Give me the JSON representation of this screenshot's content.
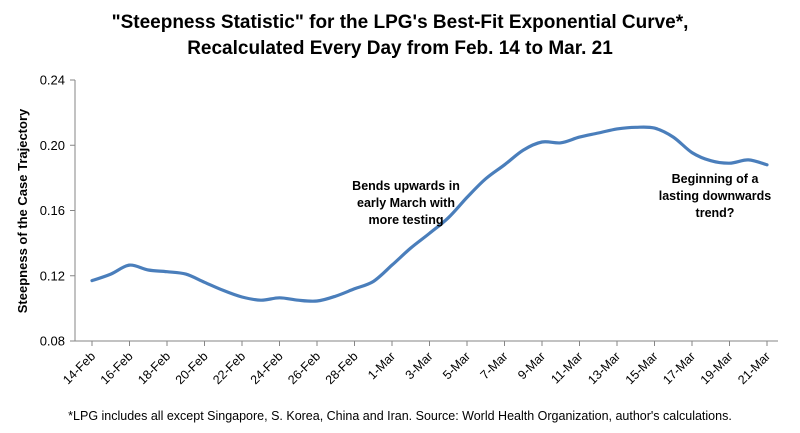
{
  "chart_data": {
    "type": "line",
    "title": [
      "\"Steepness Statistic\" for the LPG's Best-Fit Exponential Curve*,",
      "Recalculated Every Day from Feb. 14 to Mar. 21"
    ],
    "xlabel": "",
    "ylabel": "Steepness of the Case Trajectory",
    "ylim": [
      0.08,
      0.24
    ],
    "yticks": [
      "0.08",
      "0.12",
      "0.16",
      "0.20",
      "0.24"
    ],
    "grid": false,
    "x_tick_labels": [
      "14-Feb",
      "16-Feb",
      "18-Feb",
      "20-Feb",
      "22-Feb",
      "24-Feb",
      "26-Feb",
      "28-Feb",
      "1-Mar",
      "3-Mar",
      "5-Mar",
      "7-Mar",
      "9-Mar",
      "11-Mar",
      "13-Mar",
      "15-Mar",
      "17-Mar",
      "19-Mar",
      "21-Mar"
    ],
    "series": [
      {
        "color": "#4a7ebb",
        "x": [
          "14-Feb",
          "15-Feb",
          "16-Feb",
          "17-Feb",
          "18-Feb",
          "19-Feb",
          "20-Feb",
          "21-Feb",
          "22-Feb",
          "23-Feb",
          "24-Feb",
          "25-Feb",
          "26-Feb",
          "27-Feb",
          "28-Feb",
          "29-Feb",
          "1-Mar",
          "2-Mar",
          "3-Mar",
          "4-Mar",
          "5-Mar",
          "6-Mar",
          "7-Mar",
          "8-Mar",
          "9-Mar",
          "10-Mar",
          "11-Mar",
          "12-Mar",
          "13-Mar",
          "14-Mar",
          "15-Mar",
          "16-Mar",
          "17-Mar",
          "18-Mar",
          "19-Mar",
          "20-Mar",
          "21-Mar"
        ],
        "values": [
          0.117,
          0.121,
          0.1265,
          0.1235,
          0.1225,
          0.121,
          0.116,
          0.111,
          0.107,
          0.105,
          0.1065,
          0.105,
          0.1045,
          0.1075,
          0.112,
          0.1165,
          0.1265,
          0.137,
          0.146,
          0.1555,
          0.168,
          0.1795,
          0.188,
          0.197,
          0.202,
          0.2015,
          0.205,
          0.2075,
          0.21,
          0.211,
          0.2105,
          0.205,
          0.1955,
          0.1905,
          0.189,
          0.191,
          0.188
        ]
      }
    ],
    "annotations": [
      {
        "lines": [
          "Bends upwards in",
          "early March with",
          "more testing"
        ]
      },
      {
        "lines": [
          "Beginning of a",
          "lasting downwards",
          "trend?"
        ]
      }
    ]
  },
  "footnote": "*LPG includes all except Singapore, S. Korea, China and Iran. Source: World Health Organization, author's calculations.",
  "colors": {
    "line": "#4a7ebb",
    "axis": "#868686"
  }
}
